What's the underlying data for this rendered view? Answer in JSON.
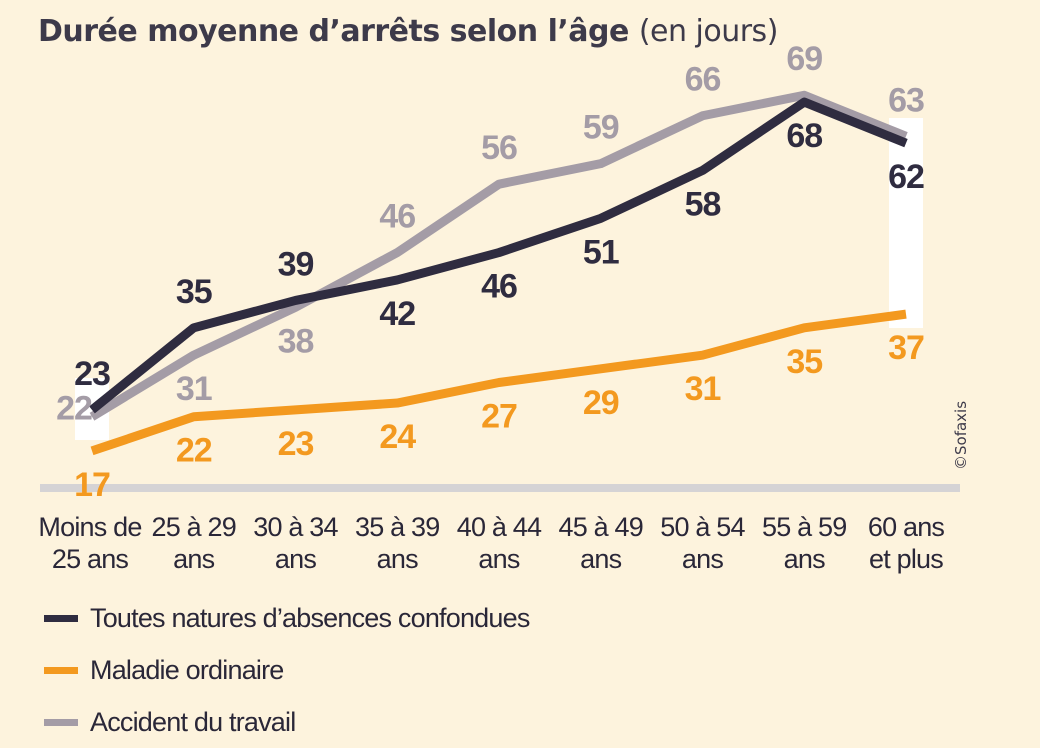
{
  "title": "Durée moyenne d’arrêts selon l’âge",
  "title_unit": "(en jours)",
  "credit": "©Sofaxis",
  "chart_data": {
    "type": "line",
    "title": "Durée moyenne d’arrêts selon l’âge (en jours)",
    "categories": [
      [
        "Moins de",
        "25 ans"
      ],
      [
        "25 à 29",
        "ans"
      ],
      [
        "30 à 34",
        "ans"
      ],
      [
        "35 à 39",
        "ans"
      ],
      [
        "40 à 44",
        "ans"
      ],
      [
        "45 à 49",
        "ans"
      ],
      [
        "50 à 54",
        "ans"
      ],
      [
        "55 à 59",
        "ans"
      ],
      [
        "60 ans",
        "et plus"
      ]
    ],
    "series": [
      {
        "name": "Toutes natures d’absences confondues",
        "color": "#2f2c40",
        "values": [
          23,
          35,
          39,
          42,
          46,
          51,
          58,
          68,
          62
        ]
      },
      {
        "name": "Maladie ordinaire",
        "color": "#f3991f",
        "values": [
          17,
          22,
          23,
          24,
          27,
          29,
          31,
          35,
          37
        ]
      },
      {
        "name": "Accident du travail",
        "color": "#a49ca6",
        "values": [
          22,
          31,
          38,
          46,
          56,
          59,
          66,
          69,
          63
        ]
      }
    ],
    "grid": false,
    "legend": "bottom-left"
  }
}
